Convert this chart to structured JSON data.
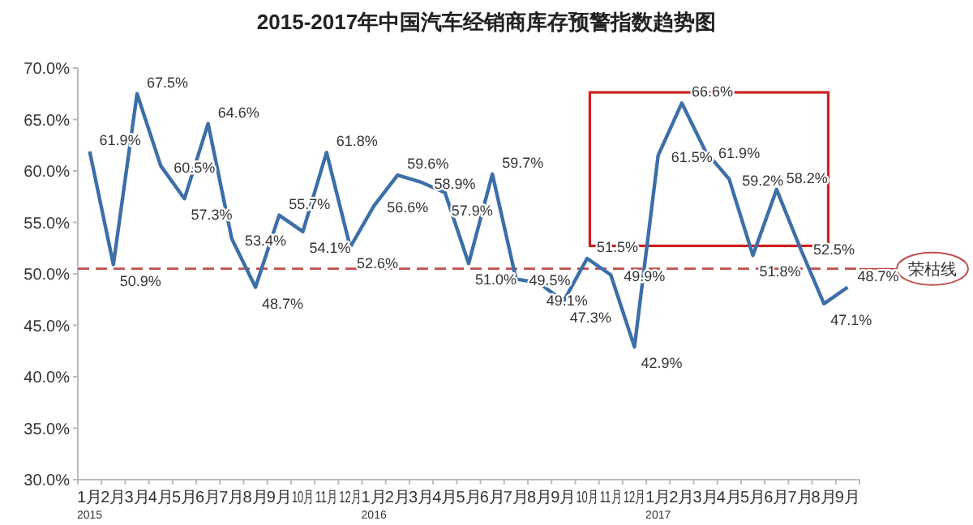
{
  "chart_data": {
    "type": "line",
    "title": "2015-2017年中国汽车经销商库存预警指数趋势图",
    "categories": [
      "1月\n2015",
      "2月",
      "3月",
      "4月",
      "5月",
      "6月",
      "7月",
      "8月",
      "9月",
      "10月",
      "11月",
      "12月",
      "1月\n2016",
      "2月",
      "3月",
      "4月",
      "5月",
      "6月",
      "7月",
      "8月",
      "9月",
      "10月",
      "11月",
      "12月",
      "1月\n2017",
      "2月",
      "3月",
      "4月",
      "5月",
      "6月",
      "7月",
      "8月",
      "9月"
    ],
    "series": [
      {
        "color": "#3c6fa8",
        "values": [
          61.9,
          50.9,
          67.5,
          60.5,
          57.3,
          64.6,
          53.4,
          48.7,
          55.7,
          54.1,
          61.8,
          52.6,
          56.6,
          59.6,
          58.9,
          57.9,
          51.0,
          59.7,
          49.5,
          49.1,
          47.3,
          51.5,
          49.9,
          42.9,
          61.5,
          66.6,
          61.9,
          59.2,
          51.8,
          58.2,
          52.5,
          47.1,
          48.7
        ],
        "value_labels": [
          "61.9%",
          "50.9%",
          "67.5%",
          "60.5%",
          "57.3%",
          "64.6%",
          "53.4%",
          "48.7%",
          "55.7%",
          "54.1%",
          "61.8%",
          "52.6%",
          "56.6%",
          "59.6%",
          "58.9%",
          "57.9%",
          "51.0%",
          "59.7%",
          "49.5%",
          "49.1%",
          "47.3%",
          "51.5%",
          "49.9%",
          "42.9%",
          "61.5%",
          "66.6%",
          "61.9%",
          "59.2%",
          "51.8%",
          "58.2%",
          "52.5%",
          "47.1%",
          "48.7%"
        ]
      }
    ],
    "ylim": [
      30,
      70
    ],
    "yticks": [
      {
        "value": 30,
        "label": "30.0%"
      },
      {
        "value": 35,
        "label": "35.0%"
      },
      {
        "value": 40,
        "label": "40.0%"
      },
      {
        "value": 45,
        "label": "45.0%"
      },
      {
        "value": 50,
        "label": "50.0%"
      },
      {
        "value": 55,
        "label": "55.0%"
      },
      {
        "value": 60,
        "label": "60.0%"
      },
      {
        "value": 65,
        "label": "65.0%"
      },
      {
        "value": 70,
        "label": "70.0%"
      }
    ],
    "ref_lines": [
      {
        "axis": "y",
        "value": 50.5,
        "label": "荣枯线",
        "color": "#c0504d",
        "line_style": "dashed"
      }
    ],
    "grid": false,
    "marker": "none",
    "line_style": "solid"
  }
}
